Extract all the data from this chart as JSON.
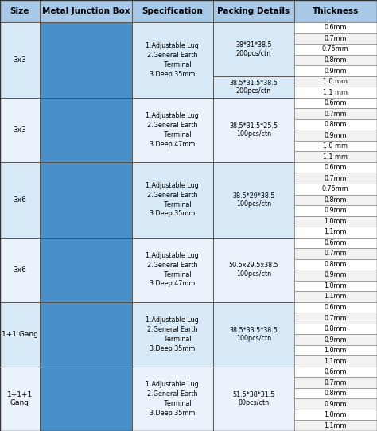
{
  "headers": [
    "Size",
    "Metal Junction Box",
    "Specification",
    "Packing Details",
    "Thickness"
  ],
  "col_proportions": [
    0.105,
    0.245,
    0.215,
    0.215,
    0.22
  ],
  "header_bg": "#A8C8E8",
  "header_fontsize": 7.5,
  "row_bg_light": "#D8EAF8",
  "row_bg_lighter": "#EAF3FB",
  "img_bg": "#4A90C8",
  "thickness_bg_white": "#FFFFFF",
  "thickness_bg_gray": "#F2F2F2",
  "rows": [
    {
      "size": "3x3",
      "spec": "1.Adjustable Lug\n2.General Earth\n     Terminal\n3.Deep 35mm",
      "packing": "38*31*38.5\n200pcs/ctn\n\n38.5*31.5*38.5\n200pcs/ctn",
      "thickness": [
        "0.6mm",
        "0.7mm",
        "0.75mm",
        "0.8mm",
        "0.9mm",
        "1.0 mm",
        "1.1 mm"
      ],
      "num_sub": 7
    },
    {
      "size": "3x3",
      "spec": "1.Adjustable Lug\n2.General Earth\n     Terminal\n3.Deep 47mm",
      "packing": "38.5*31.5*25.5\n100pcs/ctn",
      "thickness": [
        "0.6mm",
        "0.7mm",
        "0.8mm",
        "0.9mm",
        "1.0 mm",
        "1.1 mm"
      ],
      "num_sub": 6
    },
    {
      "size": "3x6",
      "spec": "1.Adjustable Lug\n2.General Earth\n     Terminal\n3.Deep 35mm",
      "packing": "38.5*29*38.5\n100pcs/ctn",
      "thickness": [
        "0.6mm",
        "0.7mm",
        "0.75mm",
        "0.8mm",
        "0.9mm",
        "1.0mm",
        "1.1mm"
      ],
      "num_sub": 7
    },
    {
      "size": "3x6",
      "spec": "1.Adjustable Lug\n2.General Earth\n     Terminal\n3.Deep 47mm",
      "packing": "50.5x29.5x38.5\n100pcs/ctn",
      "thickness": [
        "0.6mm",
        "0.7mm",
        "0.8mm",
        "0.9mm",
        "1.0mm",
        "1.1mm"
      ],
      "num_sub": 6
    },
    {
      "size": "1+1 Gang",
      "spec": "1.Adjustable Lug\n2.General Earth\n     Terminal\n3.Deep 35mm",
      "packing": "38.5*33.5*38.5\n100pcs/ctn",
      "thickness": [
        "0.6mm",
        "0.7mm",
        "0.8mm",
        "0.9mm",
        "1.0mm",
        "1.1mm"
      ],
      "num_sub": 6
    },
    {
      "size": "1+1+1\nGang",
      "spec": "1.Adjustable Lug\n2.General Earth\n     Terminal\n3.Deep 35mm",
      "packing": "51.5*38*31.5\n80pcs/ctn",
      "thickness": [
        "0.6mm",
        "0.7mm",
        "0.8mm",
        "0.9mm",
        "1.0mm",
        "1.1mm"
      ],
      "num_sub": 6
    }
  ],
  "fig_w": 4.74,
  "fig_h": 5.42,
  "dpi": 100
}
